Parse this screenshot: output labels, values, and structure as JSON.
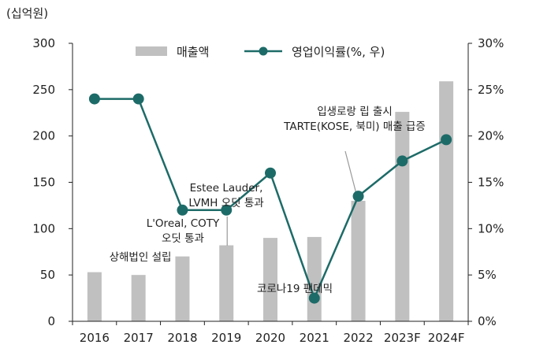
{
  "chart_data": {
    "type": "bar+line",
    "y_unit_label": "(십억원)",
    "categories": [
      "2016",
      "2017",
      "2018",
      "2019",
      "2020",
      "2021",
      "2022",
      "2023F",
      "2024F"
    ],
    "series": [
      {
        "name": "매출액",
        "type": "bar",
        "axis": "left",
        "values": [
          53,
          50,
          70,
          82,
          90,
          91,
          130,
          226,
          259
        ]
      },
      {
        "name": "영업이익률(%, 우)",
        "type": "line",
        "axis": "right",
        "values": [
          24.0,
          24.0,
          12.0,
          12.0,
          16.0,
          2.5,
          13.5,
          17.3,
          19.6
        ]
      }
    ],
    "left_axis": {
      "ylim": [
        0,
        300
      ],
      "ticks": [
        "0",
        "50",
        "100",
        "150",
        "200",
        "250",
        "300"
      ]
    },
    "right_axis": {
      "ylim": [
        0,
        30
      ],
      "ticks": [
        "0%",
        "5%",
        "10%",
        "15%",
        "20%",
        "25%",
        "30%"
      ]
    },
    "legend_position": "top",
    "colors": {
      "bar": "#c0c0c0",
      "line": "#1d6b68",
      "axis": "#222222"
    },
    "annotations": [
      {
        "x": "2017",
        "lines": [
          "상해법인 설립"
        ]
      },
      {
        "x": "2018",
        "lines": [
          "L'Oreal, COTY",
          "오딧 통과"
        ]
      },
      {
        "x": "2019",
        "lines": [
          "Estee Lauder,",
          "LVMH 오딧 통과"
        ]
      },
      {
        "x": "2021",
        "lines": [
          "코로나19 팬데믹"
        ]
      },
      {
        "x": "2022",
        "lines": [
          "입생로랑 립 출시",
          "TARTE(KOSE, 북미) 매출 급증"
        ]
      }
    ]
  }
}
